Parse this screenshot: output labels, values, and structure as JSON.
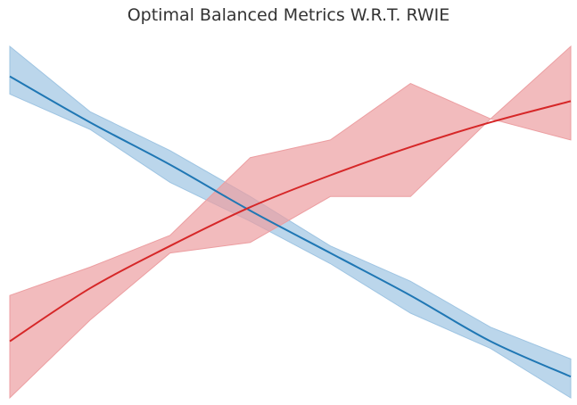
{
  "chart_data": {
    "type": "line",
    "title": "Optimal Balanced Metrics W.R.T. RWIE",
    "xlabel": "",
    "ylabel": "",
    "grid": false,
    "axes_visible": false,
    "x": [
      0,
      1,
      2,
      3,
      4,
      5,
      6,
      7
    ],
    "xlim": [
      0,
      7
    ],
    "ylim": [
      0,
      1
    ],
    "series": [
      {
        "color": "#1f77b4",
        "band_color": "#9ec4e2",
        "line": [
          0.91,
          0.78,
          0.66,
          0.53,
          0.41,
          0.29,
          0.16,
          0.06
        ],
        "upper": [
          0.995,
          0.81,
          0.7,
          0.57,
          0.43,
          0.33,
          0.2,
          0.11
        ],
        "lower": [
          0.86,
          0.76,
          0.61,
          0.5,
          0.38,
          0.24,
          0.14,
          0.0
        ]
      },
      {
        "color": "#d62728",
        "band_color": "#ec9ea1",
        "line": [
          0.16,
          0.31,
          0.43,
          0.54,
          0.63,
          0.71,
          0.78,
          0.84
        ],
        "upper": [
          0.29,
          0.37,
          0.46,
          0.68,
          0.73,
          0.89,
          0.79,
          0.995
        ],
        "lower": [
          0.0,
          0.22,
          0.41,
          0.44,
          0.57,
          0.57,
          0.79,
          0.73
        ]
      }
    ]
  }
}
